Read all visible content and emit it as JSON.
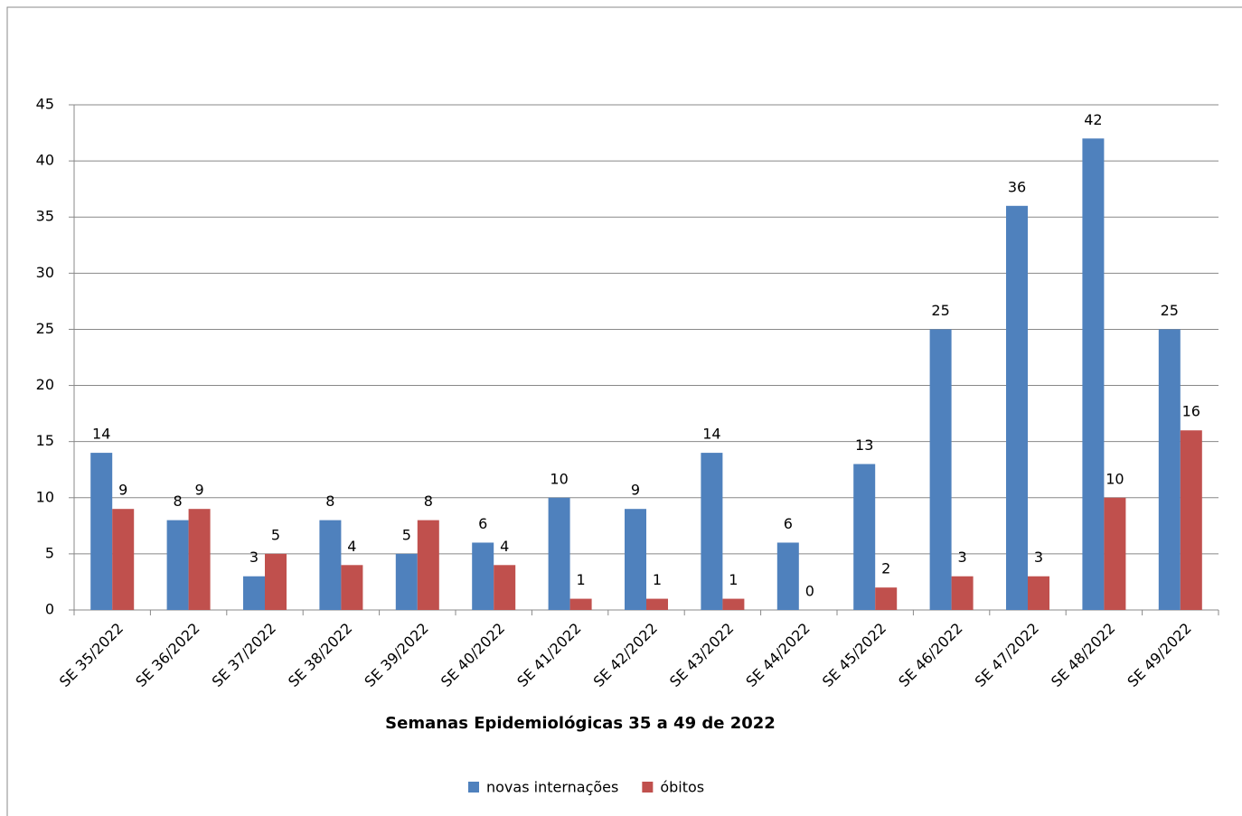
{
  "chart_data": {
    "type": "bar",
    "x_label": "Semanas Epidemiológicas 35 a 49 de 2022",
    "categories": [
      "SE 35/2022",
      "SE 36/2022",
      "SE 37/2022",
      "SE 38/2022",
      "SE 39/2022",
      "SE 40/2022",
      "SE 41/2022",
      "SE 42/2022",
      "SE 43/2022",
      "SE 44/2022",
      "SE 45/2022",
      "SE 46/2022",
      "SE 47/2022",
      "SE 48/2022",
      "SE 49/2022"
    ],
    "series": [
      {
        "name": "novas internações",
        "color": "#4f81bd",
        "values": [
          14,
          8,
          3,
          8,
          5,
          6,
          10,
          9,
          14,
          6,
          13,
          25,
          36,
          42,
          25
        ]
      },
      {
        "name": "óbitos",
        "color": "#c0504d",
        "values": [
          9,
          9,
          5,
          4,
          8,
          4,
          1,
          1,
          1,
          0,
          2,
          3,
          3,
          10,
          16
        ]
      }
    ],
    "ylim": [
      0,
      45
    ],
    "yticks": [
      0,
      5,
      10,
      15,
      20,
      25,
      30,
      35,
      40,
      45
    ],
    "grid": true,
    "legend": "bottom"
  }
}
